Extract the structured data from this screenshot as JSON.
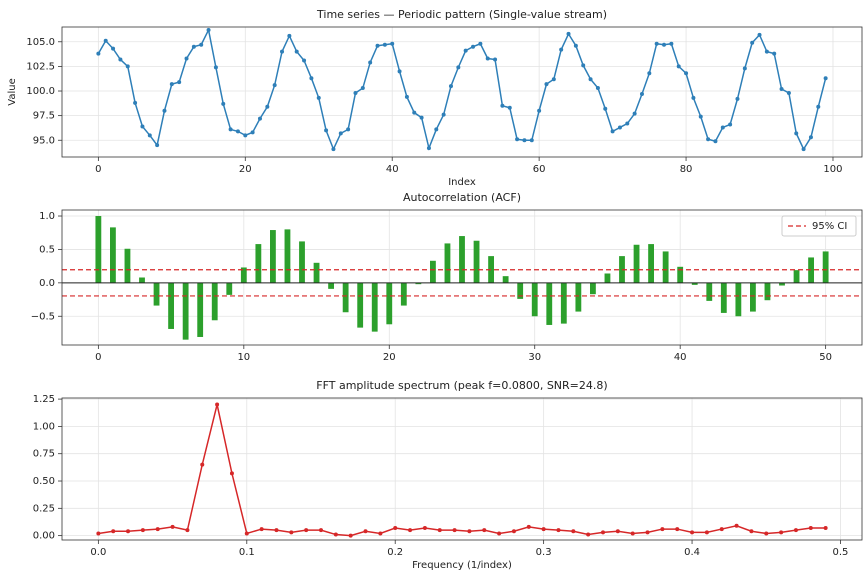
{
  "chart_data": [
    {
      "type": "line",
      "title": "Time series — Periodic pattern (Single-value stream)",
      "xlabel": "Index",
      "ylabel": "Value",
      "color": "#2e7fb8",
      "markers": true,
      "grid": true,
      "x": [
        0,
        1,
        2,
        3,
        4,
        5,
        6,
        7,
        8,
        9,
        10,
        11,
        12,
        13,
        14,
        15,
        16,
        17,
        18,
        19,
        20,
        21,
        22,
        23,
        24,
        25,
        26,
        27,
        28,
        29,
        30,
        31,
        32,
        33,
        34,
        35,
        36,
        37,
        38,
        39,
        40,
        41,
        42,
        43,
        44,
        45,
        46,
        47,
        48,
        49,
        50,
        51,
        52,
        53,
        54,
        55,
        56,
        57,
        58,
        59,
        60,
        61,
        62,
        63,
        64,
        65,
        66,
        67,
        68,
        69,
        70,
        71,
        72,
        73,
        74,
        75,
        76,
        77,
        78,
        79,
        80,
        81,
        82,
        83,
        84,
        85,
        86,
        87,
        88,
        89,
        90,
        91,
        92,
        93,
        94,
        95,
        96,
        97,
        98,
        99
      ],
      "values": [
        103.8,
        105.1,
        104.3,
        103.2,
        102.5,
        98.8,
        96.4,
        95.5,
        94.5,
        98.0,
        100.7,
        100.9,
        103.3,
        104.5,
        104.7,
        106.2,
        102.4,
        98.7,
        96.1,
        95.9,
        95.5,
        95.8,
        97.2,
        98.4,
        100.6,
        104.0,
        105.6,
        104.0,
        103.1,
        101.3,
        99.3,
        96.0,
        94.1,
        95.7,
        96.1,
        99.8,
        100.3,
        102.9,
        104.6,
        104.7,
        104.8,
        102.0,
        99.4,
        97.8,
        97.3,
        94.2,
        96.1,
        97.6,
        100.5,
        102.4,
        104.1,
        104.5,
        104.8,
        103.3,
        103.2,
        98.5,
        98.3,
        95.1,
        95.0,
        95.0,
        98.0,
        100.7,
        101.2,
        104.2,
        105.8,
        104.6,
        102.6,
        101.2,
        100.3,
        98.2,
        95.9,
        96.3,
        96.7,
        97.7,
        99.7,
        101.8,
        104.8,
        104.7,
        104.8,
        102.5,
        101.8,
        99.3,
        97.4,
        95.1,
        94.9,
        96.3,
        96.6,
        99.2,
        102.3,
        104.9,
        105.7,
        104.0,
        103.8,
        100.2,
        99.8,
        95.7,
        94.1,
        95.3,
        98.4,
        101.3
      ],
      "xlim": [
        -4.95,
        103.95
      ],
      "ylim": [
        93.3,
        106.5
      ],
      "xticks": [
        0,
        20,
        40,
        60,
        80,
        100
      ],
      "yticks": [
        {
          "value": 95,
          "label": "95.0"
        },
        97.5,
        {
          "value": 100,
          "label": "100.0"
        },
        102.5,
        {
          "value": 105,
          "label": "105.0"
        }
      ]
    },
    {
      "type": "bar",
      "title": "Autocorrelation (ACF)",
      "color": "#2ca02c",
      "grid": true,
      "legend": "upper right",
      "x": [
        0,
        1,
        2,
        3,
        4,
        5,
        6,
        7,
        8,
        9,
        10,
        11,
        12,
        13,
        14,
        15,
        16,
        17,
        18,
        19,
        20,
        21,
        22,
        23,
        24,
        25,
        26,
        27,
        28,
        29,
        30,
        31,
        32,
        33,
        34,
        35,
        36,
        37,
        38,
        39,
        40,
        41,
        42,
        43,
        44,
        45,
        46,
        47,
        48,
        49,
        50
      ],
      "values": [
        1.0,
        0.83,
        0.51,
        0.08,
        -0.34,
        -0.69,
        -0.85,
        -0.81,
        -0.56,
        -0.18,
        0.23,
        0.58,
        0.79,
        0.8,
        0.62,
        0.3,
        -0.09,
        -0.44,
        -0.67,
        -0.73,
        -0.62,
        -0.34,
        -0.02,
        0.33,
        0.59,
        0.7,
        0.63,
        0.4,
        0.1,
        -0.24,
        -0.5,
        -0.63,
        -0.61,
        -0.43,
        -0.17,
        0.14,
        0.4,
        0.57,
        0.58,
        0.47,
        0.24,
        -0.03,
        -0.27,
        -0.45,
        -0.5,
        -0.43,
        -0.26,
        -0.04,
        0.19,
        0.38,
        0.47
      ],
      "ci": {
        "name": "95% CI",
        "color": "#d62728",
        "values": [
          0.196,
          -0.196
        ]
      },
      "xlim": [
        -2.5,
        52.5
      ],
      "ylim": [
        -0.93,
        1.09
      ],
      "xticks": [
        0,
        10,
        20,
        30,
        40,
        50
      ],
      "yticks": [
        {
          "value": -0.5,
          "label": "−0.5"
        },
        {
          "value": 0,
          "label": "0.0"
        },
        0.5,
        {
          "value": 1,
          "label": "1.0"
        }
      ]
    },
    {
      "type": "line",
      "title": "FFT amplitude spectrum (peak f=0.0800, SNR=24.8)",
      "xlabel": "Frequency (1/index)",
      "color": "#d62728",
      "markers": true,
      "grid": true,
      "x": [
        0.0,
        0.01,
        0.02,
        0.03,
        0.04,
        0.05,
        0.06,
        0.07,
        0.08,
        0.09,
        0.1,
        0.11,
        0.12,
        0.13,
        0.14,
        0.15,
        0.16,
        0.17,
        0.18,
        0.19,
        0.2,
        0.21,
        0.22,
        0.23,
        0.24,
        0.25,
        0.26,
        0.27,
        0.28,
        0.29,
        0.3,
        0.31,
        0.32,
        0.33,
        0.34,
        0.35,
        0.36,
        0.37,
        0.38,
        0.39,
        0.4,
        0.41,
        0.42,
        0.43,
        0.44,
        0.45,
        0.46,
        0.47,
        0.48,
        0.49
      ],
      "values": [
        0.02,
        0.04,
        0.04,
        0.05,
        0.06,
        0.08,
        0.05,
        0.65,
        1.2,
        0.57,
        0.02,
        0.06,
        0.05,
        0.03,
        0.05,
        0.05,
        0.01,
        0.0,
        0.04,
        0.02,
        0.07,
        0.05,
        0.07,
        0.05,
        0.05,
        0.04,
        0.05,
        0.02,
        0.04,
        0.08,
        0.06,
        0.05,
        0.04,
        0.01,
        0.03,
        0.04,
        0.02,
        0.03,
        0.06,
        0.06,
        0.03,
        0.03,
        0.06,
        0.09,
        0.04,
        0.02,
        0.03,
        0.05,
        0.07,
        0.07
      ],
      "xlim": [
        -0.0245,
        0.5145
      ],
      "ylim": [
        -0.04,
        1.26
      ],
      "xticks": [
        {
          "value": 0,
          "label": "0.0"
        },
        0.1,
        0.2,
        0.3,
        0.4,
        0.5
      ],
      "yticks": [
        {
          "value": 0,
          "label": "0.00"
        },
        0.25,
        {
          "value": 0.5,
          "label": "0.50"
        },
        0.75,
        {
          "value": 1,
          "label": "1.00"
        },
        1.25
      ]
    }
  ]
}
